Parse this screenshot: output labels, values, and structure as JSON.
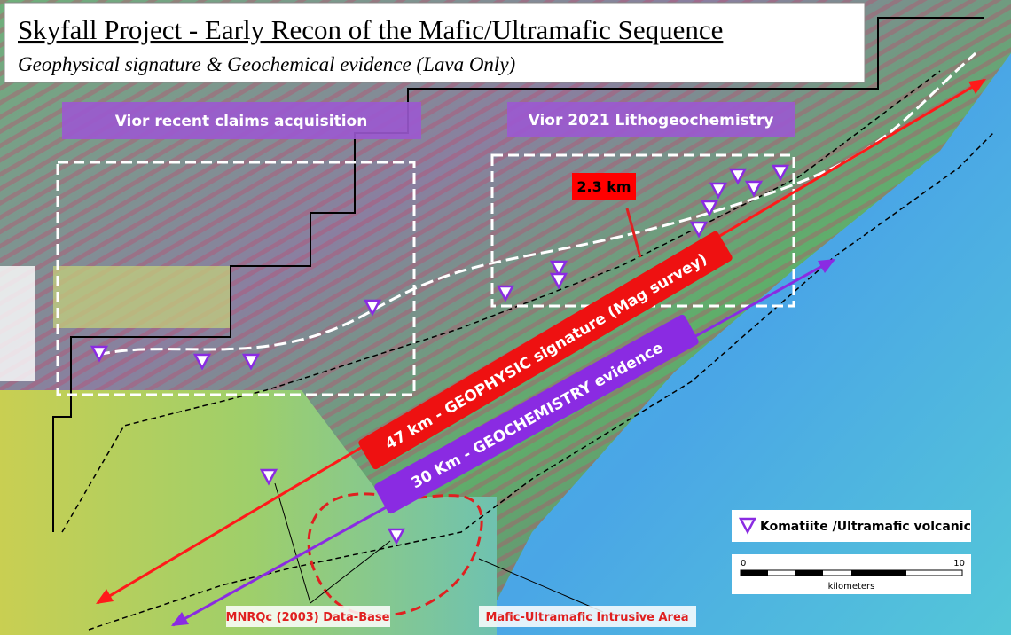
{
  "header": {
    "title": "Skyfall Project - Early Recon of the Mafic/Ultramafic Sequence",
    "subtitle": "Geophysical signature & Geochemical evidence (Lava Only)"
  },
  "labels": {
    "claims": "Vior recent claims acquisition",
    "lithogeochemistry": "Vior 2021 Lithogeochemistry",
    "distance": "2.3 km",
    "geophysic": "47 km - GEOPHYSIC signature (Mag survey)",
    "geochemistry": "30 Km - GEOCHEMISTRY evidence",
    "database": "MNRQc (2003) Data-Base",
    "intrusive": "Mafic-Ultramafic Intrusive Area"
  },
  "legend": {
    "komatiite": "Komatiite /Ultramafic volcanic"
  },
  "scale_bar": {
    "start": 0,
    "end": 10,
    "unit": "kilometers"
  }
}
